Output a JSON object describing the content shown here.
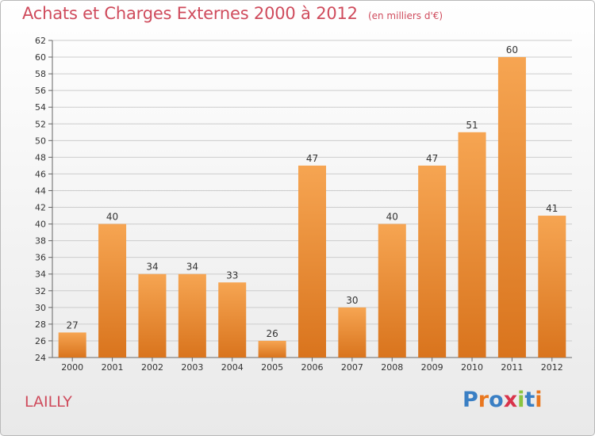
{
  "title": "Achats et Charges Externes 2000 à 2012",
  "unit": "(en milliers d'€)",
  "commune": "LAILLY",
  "brand": {
    "letters": [
      "P",
      "r",
      "o",
      "x",
      "i",
      "t",
      "i"
    ],
    "colors": [
      "#3a7fc4",
      "#e9771f",
      "#3a7fc4",
      "#d8344b",
      "#8ac541",
      "#3a7fc4",
      "#e9771f"
    ]
  },
  "colors": {
    "bar_top": "#f6a552",
    "bar_bottom": "#d9741d",
    "title": "#cf4b5c",
    "grid": "#cccccc"
  },
  "chart_data": {
    "type": "bar",
    "categories": [
      "2000",
      "2001",
      "2002",
      "2003",
      "2004",
      "2005",
      "2006",
      "2007",
      "2008",
      "2009",
      "2010",
      "2011",
      "2012"
    ],
    "values": [
      27,
      40,
      34,
      34,
      33,
      26,
      47,
      30,
      40,
      47,
      51,
      60,
      41
    ],
    "title": "Achats et Charges Externes 2000 à 2012",
    "xlabel": "",
    "ylabel": "",
    "ylim": [
      24,
      62
    ],
    "yticks": [
      24,
      26,
      28,
      30,
      32,
      34,
      36,
      38,
      40,
      42,
      44,
      46,
      48,
      50,
      52,
      54,
      56,
      58,
      60,
      62
    ],
    "grid": true,
    "legend": "none"
  }
}
